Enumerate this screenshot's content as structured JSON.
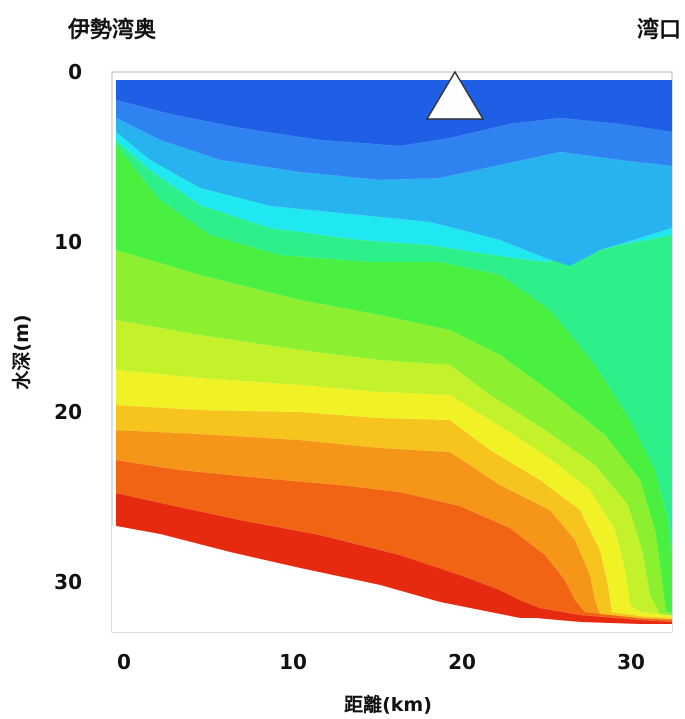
{
  "chart_data": {
    "type": "heatmap",
    "title": "",
    "left_label": "伊勢湾奥",
    "right_label": "湾口",
    "xlabel": "距離(km)",
    "ylabel": "水深(m)",
    "xlim": [
      0,
      33
    ],
    "ylim": [
      0,
      33
    ],
    "x_ticks": [
      "0",
      "10",
      "20",
      "30"
    ],
    "y_ticks": [
      "0",
      "10",
      "20",
      "30"
    ],
    "y_inverted": true,
    "marker": {
      "shape": "triangle",
      "x": 20,
      "y": 2,
      "color": "#ffffff"
    },
    "colormap": [
      "#1f5fe6",
      "#2f83f0",
      "#27b2f0",
      "#20e8f0",
      "#2ef08a",
      "#4af040",
      "#8cf030",
      "#c4f22a",
      "#f0f226",
      "#f7c41e",
      "#f59618",
      "#f06414",
      "#e62a10",
      "#d60c0c"
    ]
  }
}
